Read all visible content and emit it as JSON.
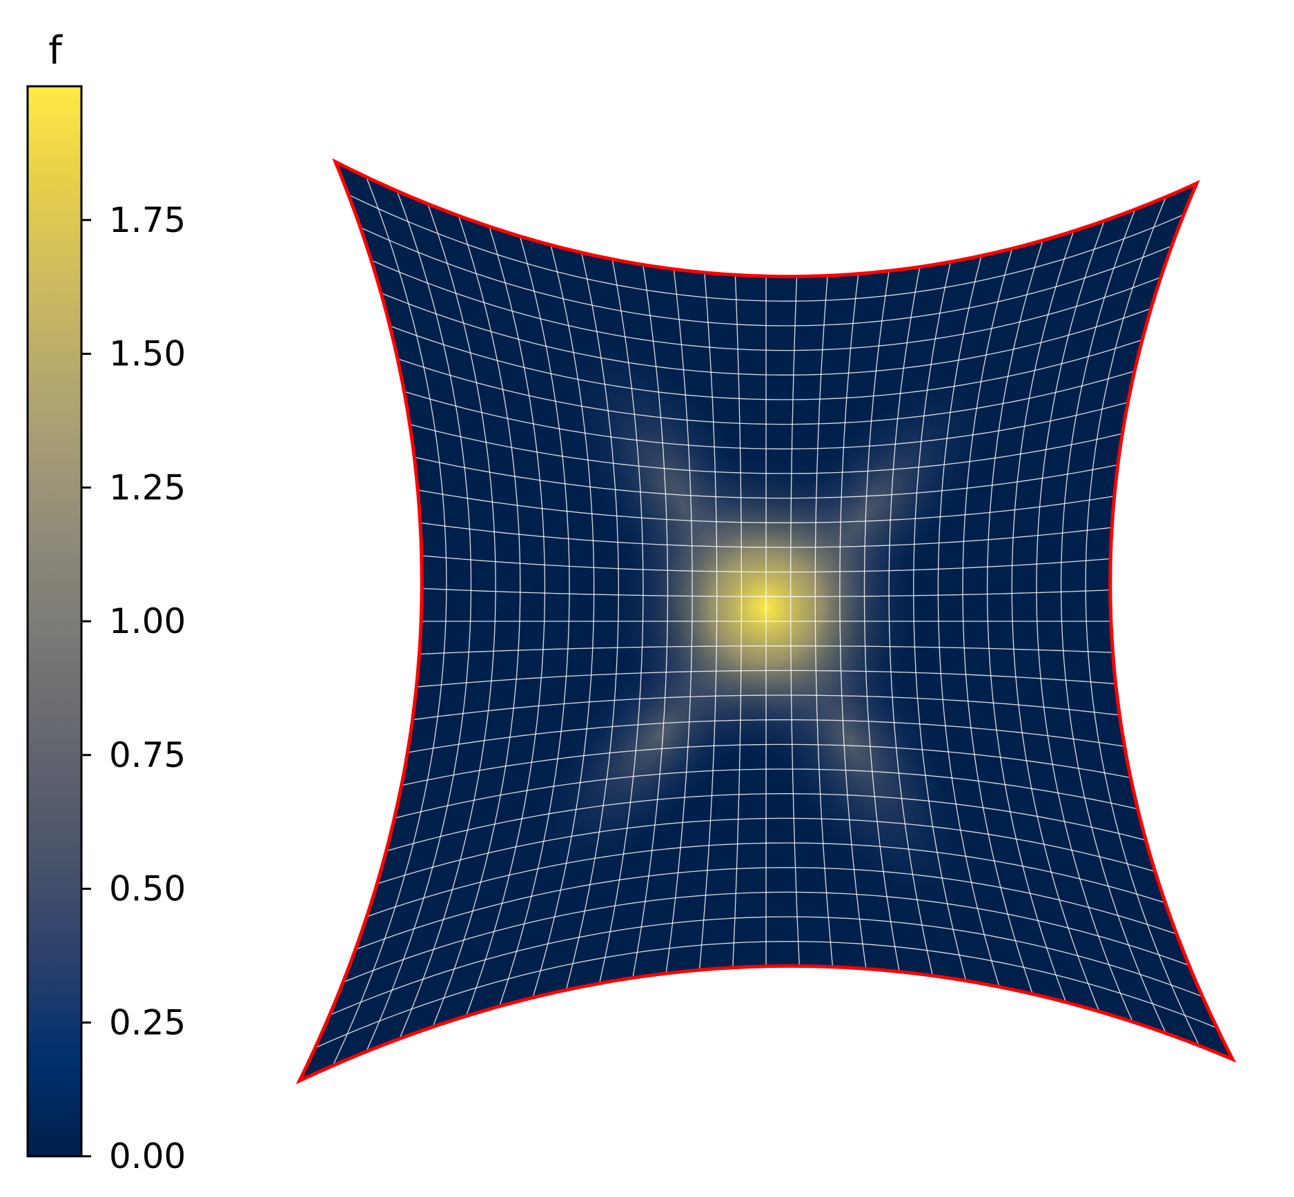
{
  "chart_data": {
    "type": "heatmap",
    "title": "",
    "description_text": "",
    "colorbar": {
      "label": "f",
      "colormap": "cividis",
      "range": [
        0.0,
        2.0
      ],
      "ticks": [
        0.0,
        0.25,
        0.5,
        0.75,
        1.0,
        1.25,
        1.5,
        1.75
      ],
      "tick_labels": [
        "0.00",
        "0.25",
        "0.50",
        "0.75",
        "1.00",
        "1.25",
        "1.50",
        "1.75"
      ],
      "gradient_colors": [
        "#00204c",
        "#00306f",
        "#2a406c",
        "#48526b",
        "#5e626e",
        "#727374",
        "#878479",
        "#9e9677",
        "#b5a86e",
        "#cebb5f",
        "#e7ce4a",
        "#ffea46"
      ]
    },
    "field": {
      "domain": "warped square with four concave scalloped sides",
      "peak_value": 2.0,
      "background_value": 0.05,
      "mesh_lines": 28,
      "mesh_color": "#ffffff",
      "boundary_color": "#ff0000"
    }
  }
}
